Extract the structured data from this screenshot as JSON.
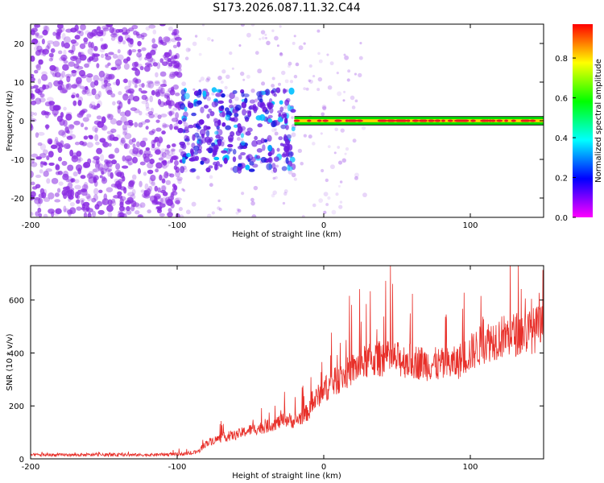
{
  "title": "S173.2026.087.11.32.C44",
  "colors": {
    "snr_line": "#e8302a",
    "spectrogram_low": "#8a2be2",
    "band": "#00e000",
    "band_peak": "#e02020",
    "frame": "#000000"
  },
  "colorbar": {
    "label": "Normalized spectral amplitude",
    "range": [
      0.0,
      0.97
    ],
    "tick_values": [
      0.0,
      0.2,
      0.4,
      0.6,
      0.8
    ],
    "tick_labels": [
      "0.0",
      "0.2",
      "0.4",
      "0.6",
      "0.8"
    ],
    "colormap": "hsv-rainbow (magenta→blue→cyan→green→yellow→red)"
  },
  "chart_data": [
    {
      "type": "heatmap",
      "title": "S173.2026.087.11.32.C44",
      "xlabel": "Height of straight line (km)",
      "ylabel": "Frequency (Hz)",
      "xlim": [
        -200,
        150
      ],
      "ylim": [
        -25,
        25
      ],
      "xticks": [
        -200,
        -100,
        0,
        100
      ],
      "xtick_labels": [
        "-200",
        "-100",
        "0",
        "100"
      ],
      "yticks": [
        -20,
        -10,
        0,
        10,
        20
      ],
      "ytick_labels": [
        "-20",
        "-10",
        "0",
        "10",
        "20"
      ],
      "regions": [
        {
          "name": "broadband noise",
          "x_range": [
            -200,
            -98
          ],
          "freq_range": [
            -25,
            25
          ],
          "amplitude": 0.1
        },
        {
          "name": "transition scatter",
          "x_range": [
            -98,
            -20
          ],
          "freq_range": [
            -13,
            10
          ],
          "amplitude": 0.2
        },
        {
          "name": "narrow signal band",
          "x_range": [
            -20,
            150
          ],
          "freq_center": 0,
          "freq_halfwidth": 1,
          "amplitude": 0.95
        }
      ]
    },
    {
      "type": "line",
      "xlabel": "Height of straight line (km)",
      "ylabel": "SNR (10 * v/v)",
      "xlim": [
        -200,
        150
      ],
      "ylim": [
        0,
        730
      ],
      "xticks": [
        -200,
        -100,
        0,
        100
      ],
      "xtick_labels": [
        "-200",
        "-100",
        "0",
        "100"
      ],
      "yticks": [
        0,
        200,
        400,
        600
      ],
      "ytick_labels": [
        "0",
        "200",
        "400",
        "600"
      ],
      "series": [
        {
          "name": "SNR",
          "x": [
            -200,
            -180,
            -160,
            -140,
            -120,
            -100,
            -90,
            -85,
            -80,
            -70,
            -60,
            -50,
            -40,
            -30,
            -25,
            -20,
            -15,
            -10,
            -5,
            0,
            5,
            10,
            15,
            20,
            30,
            40,
            50,
            60,
            70,
            80,
            90,
            100,
            110,
            120,
            130,
            140,
            150
          ],
          "y": [
            15,
            15,
            15,
            15,
            15,
            18,
            20,
            30,
            60,
            80,
            90,
            110,
            120,
            140,
            150,
            140,
            160,
            180,
            230,
            260,
            280,
            300,
            320,
            340,
            370,
            380,
            375,
            370,
            360,
            355,
            360,
            400,
            440,
            460,
            470,
            480,
            500
          ]
        }
      ]
    }
  ]
}
